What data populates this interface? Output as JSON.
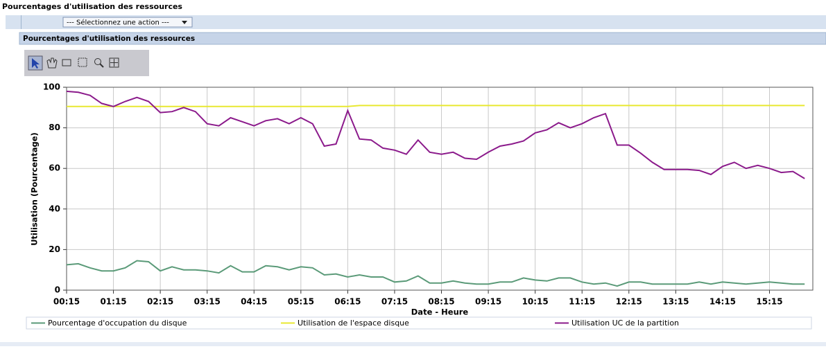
{
  "header": {
    "title": "Pourcentages d'utilisation des ressources"
  },
  "toolbar": {
    "select": "--- Sélectionnez une action ---"
  },
  "panel": {
    "title": "Pourcentages d'utilisation des ressources"
  },
  "chart_data": {
    "type": "line",
    "xlabel": "Date - Heure",
    "ylabel": "Utilisation (Pourcentage)",
    "categories": [
      "00:15",
      null,
      null,
      null,
      "01:15",
      null,
      null,
      null,
      "02:15",
      null,
      null,
      null,
      "03:15",
      null,
      null,
      null,
      "04:15",
      null,
      null,
      null,
      "05:15",
      null,
      null,
      null,
      "06:15",
      null,
      null,
      null,
      "07:15",
      null,
      null,
      null,
      "08:15",
      null,
      null,
      null,
      "09:15",
      null,
      null,
      null,
      "10:15",
      null,
      null,
      null,
      "11:15",
      null,
      null,
      null,
      "12:15",
      null,
      null,
      null,
      "13:15",
      null,
      null,
      null,
      "14:15",
      null,
      null,
      null,
      "15:15",
      null,
      null,
      null
    ],
    "series": [
      {
        "name": "Pourcentage d'occupation du disque",
        "color": "#5a9a78",
        "values": [
          12.5,
          13,
          11,
          9.5,
          9.5,
          11,
          14.5,
          14,
          9.5,
          11.5,
          10,
          10,
          9.5,
          8.5,
          12,
          9,
          9,
          12,
          11.5,
          10,
          11.5,
          11,
          7.5,
          8,
          6.5,
          7.5,
          6.5,
          6.5,
          4,
          4.5,
          7,
          3.5,
          3.5,
          4.5,
          3.5,
          3,
          3,
          4,
          4,
          6,
          5,
          4.5,
          6,
          6,
          4,
          3,
          3.5,
          2,
          4,
          4,
          3,
          3,
          3,
          3,
          4,
          3,
          4,
          3.5,
          3,
          3.5,
          4,
          3.5,
          3,
          3
        ]
      },
      {
        "name": "Utilisation de l'espace disque",
        "color": "#e8e830",
        "values": [
          90.5,
          90.5,
          90.5,
          90.5,
          90.5,
          90.5,
          90.5,
          90.5,
          90.5,
          90.5,
          90.5,
          90.5,
          90.5,
          90.5,
          90.5,
          90.5,
          90.5,
          90.5,
          90.5,
          90.5,
          90.5,
          90.5,
          90.5,
          90.5,
          90.5,
          91,
          91,
          91,
          91,
          91,
          91,
          91,
          91,
          91,
          91,
          91,
          91,
          91,
          91,
          91,
          91,
          91,
          91,
          91,
          91,
          91,
          91,
          91,
          91,
          91,
          91,
          91,
          91,
          91,
          91,
          91,
          91,
          91,
          91,
          91,
          91,
          91,
          91,
          91
        ]
      },
      {
        "name": "Utilisation UC de la partition",
        "color": "#8b1a8b",
        "values": [
          98,
          97.5,
          96,
          92,
          90.5,
          93,
          95,
          93,
          87.5,
          88,
          90,
          88,
          82,
          81,
          85,
          83,
          81,
          83.5,
          84.5,
          82,
          85,
          82,
          71,
          72,
          88.5,
          74.5,
          74,
          70,
          69,
          67,
          74,
          68,
          67,
          68,
          65,
          64.5,
          68,
          71,
          72,
          73.5,
          77.5,
          79,
          82.5,
          80,
          82,
          85,
          87,
          71.5,
          71.5,
          67.5,
          63,
          59.5,
          59.5,
          59.5,
          59,
          57,
          61,
          63,
          60,
          61.5,
          60,
          58,
          58.5,
          55
        ]
      }
    ],
    "ylim": [
      0,
      100
    ],
    "yticks": [
      0,
      20,
      40,
      60,
      80,
      100
    ],
    "grid": true
  }
}
